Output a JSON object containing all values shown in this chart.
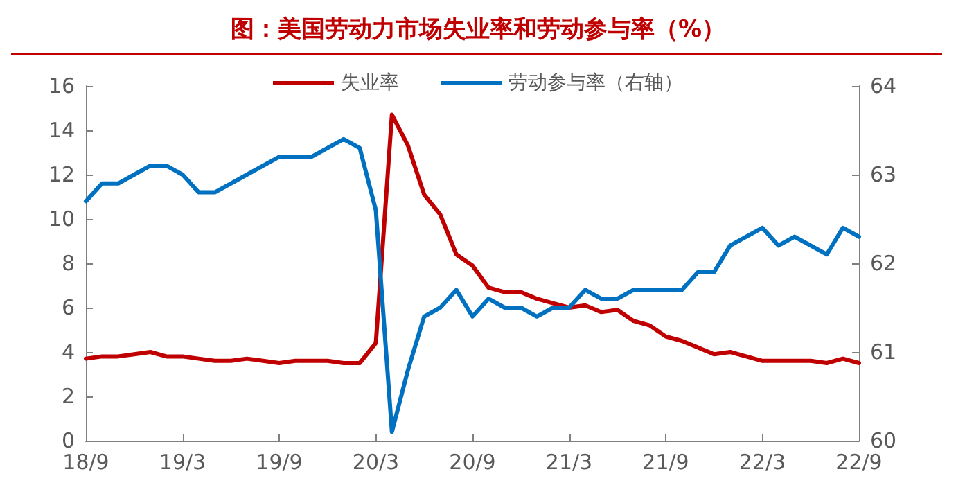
{
  "chart_data": {
    "type": "line",
    "title": "图：美国劳动力市场失业率和劳动参与率（%）",
    "categories": [
      "18/9",
      null,
      null,
      null,
      null,
      null,
      "19/3",
      null,
      null,
      null,
      null,
      null,
      "19/9",
      null,
      null,
      null,
      null,
      null,
      "20/3",
      null,
      null,
      null,
      null,
      null,
      "20/9",
      null,
      null,
      null,
      null,
      null,
      "21/3",
      null,
      null,
      null,
      null,
      null,
      "21/9",
      null,
      null,
      null,
      null,
      null,
      "22/3",
      null,
      null,
      null,
      null,
      null,
      "22/9"
    ],
    "series": [
      {
        "name": "失业率",
        "color": "#c00000",
        "values": [
          3.7,
          3.8,
          3.8,
          3.9,
          4.0,
          3.8,
          3.8,
          3.7,
          3.6,
          3.6,
          3.7,
          3.6,
          3.5,
          3.6,
          3.6,
          3.6,
          3.5,
          3.5,
          4.4,
          14.7,
          13.3,
          11.1,
          10.2,
          8.4,
          7.9,
          6.9,
          6.7,
          6.7,
          6.4,
          6.2,
          6.0,
          6.1,
          5.8,
          5.9,
          5.4,
          5.2,
          4.7,
          4.5,
          4.2,
          3.9,
          4.0,
          3.8,
          3.6,
          3.6,
          3.6,
          3.6,
          3.5,
          3.7,
          3.5
        ]
      },
      {
        "name": "劳动参与率（右轴）",
        "color": "#0070c0",
        "axis": "y2",
        "values": [
          62.7,
          62.9,
          62.9,
          63.0,
          63.1,
          63.1,
          63.0,
          62.8,
          62.8,
          62.9,
          63.0,
          63.1,
          63.2,
          63.2,
          63.2,
          63.3,
          63.4,
          63.3,
          62.6,
          60.1,
          60.8,
          61.4,
          61.5,
          61.7,
          61.4,
          61.6,
          61.5,
          61.5,
          61.4,
          61.5,
          61.5,
          61.7,
          61.6,
          61.6,
          61.7,
          61.7,
          61.7,
          61.7,
          61.9,
          61.9,
          62.2,
          62.3,
          62.4,
          62.2,
          62.3,
          62.2,
          62.1,
          62.4,
          62.3
        ]
      }
    ],
    "ylim": [
      0,
      16
    ],
    "yticks": [
      0,
      2,
      4,
      6,
      8,
      10,
      12,
      14,
      16
    ],
    "y2lim": [
      60,
      64
    ],
    "y2ticks": [
      60,
      61,
      62,
      63,
      64
    ],
    "grid": false,
    "legend": "top",
    "marker": "none",
    "line_style": "solid"
  }
}
